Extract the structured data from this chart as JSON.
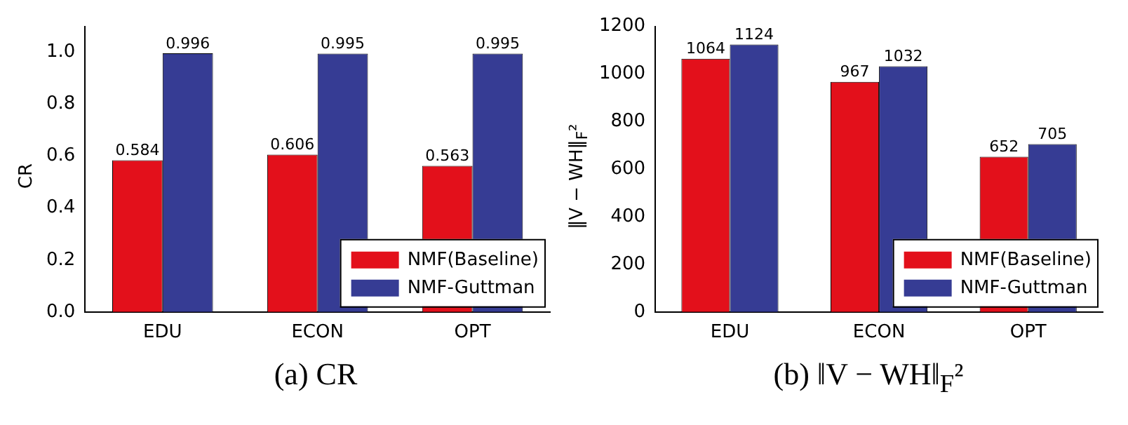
{
  "chart_data": [
    {
      "type": "bar",
      "title": "(a) CR",
      "ylabel": "CR",
      "categories": [
        "EDU",
        "ECON",
        "OPT"
      ],
      "series": [
        {
          "name": "NMF(Baseline)",
          "color": "#e3101b",
          "values": [
            0.584,
            0.606,
            0.563
          ]
        },
        {
          "name": "NMF-Guttman",
          "color": "#363c94",
          "values": [
            0.996,
            0.995,
            0.995
          ]
        }
      ],
      "ylim": [
        0,
        1.1
      ],
      "yticks": [
        {
          "value": 0,
          "label": "0.0"
        },
        0.2,
        0.4,
        0.6,
        0.8,
        {
          "value": 1,
          "label": "1.0"
        }
      ],
      "grid": false,
      "legend": "bottom right",
      "data_labels": true
    },
    {
      "type": "bar",
      "title": "(b) ‖V − WH‖$_{F}$²",
      "ylabel": "‖V − WH‖$_{F}$²",
      "categories": [
        "EDU",
        "ECON",
        "OPT"
      ],
      "series": [
        {
          "name": "NMF(Baseline)",
          "color": "#e3101b",
          "values": [
            1064,
            967,
            652
          ]
        },
        {
          "name": "NMF-Guttman",
          "color": "#363c94",
          "values": [
            1124,
            1032,
            705
          ]
        }
      ],
      "ylim": [
        0,
        1200
      ],
      "yticks": [
        0,
        200,
        400,
        600,
        800,
        1000,
        1200
      ],
      "grid": false,
      "legend": "bottom right",
      "data_labels": true
    }
  ]
}
